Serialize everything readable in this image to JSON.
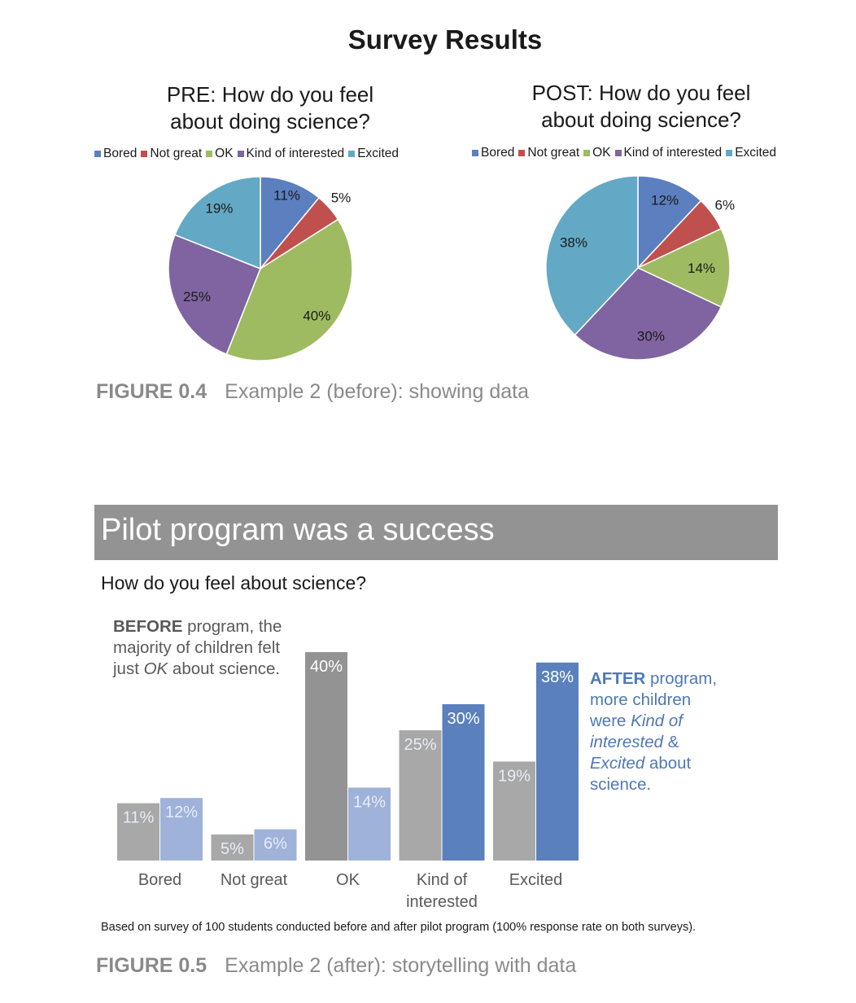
{
  "survey_title": "Survey Results",
  "figure_04": {
    "number": "FIGURE 0.4",
    "caption": "Example 2 (before): showing data"
  },
  "figure_05": {
    "number": "FIGURE 0.5",
    "caption": "Example 2 (after): storytelling with data"
  },
  "colors": {
    "bored": "#5b7fbf",
    "not_great": "#c0504d",
    "ok": "#9fbb62",
    "kind_of_interested": "#7f64a1",
    "excited": "#63a9c5",
    "before_bar": "#939393",
    "before_bar_light": "#a8a8a8",
    "after_bar": "#5a80bd",
    "after_bar_light": "#9fb2d9",
    "banner": "#939393",
    "accent_blue": "#4f78b5"
  },
  "banner": {
    "title": "Pilot program was a success"
  },
  "question": "How do you feel about science?",
  "before_note": {
    "bold": "BEFORE",
    "text1": " program, the majority of children felt just ",
    "italic": "OK",
    "text2": " about science."
  },
  "after_note": {
    "bold": "AFTER",
    "text1": " program, more children were ",
    "italic1": "Kind of interested",
    "text2": " & ",
    "italic2": "Excited",
    "text3": " about science."
  },
  "footnote": "Based on survey of 100 students conducted before and after pilot program (100% response rate on both surveys).",
  "chart_data": [
    {
      "type": "pie",
      "title": "PRE: How do you feel about doing science?",
      "title_lines": [
        "PRE: How do you feel",
        "about doing science?"
      ],
      "legend": [
        "Bored",
        "Not great",
        "OK",
        "Kind of interested",
        "Excited"
      ],
      "categories": [
        "Bored",
        "Not great",
        "OK",
        "Kind of interested",
        "Excited"
      ],
      "values": [
        11,
        5,
        40,
        25,
        19
      ],
      "labels": [
        "11%",
        "5%",
        "40%",
        "25%",
        "19%"
      ],
      "legend_position": "top"
    },
    {
      "type": "pie",
      "title": "POST: How do you feel about doing science?",
      "title_lines": [
        "POST: How do you feel",
        "about doing science?"
      ],
      "legend": [
        "Bored",
        "Not great",
        "OK",
        "Kind of interested",
        "Excited"
      ],
      "categories": [
        "Bored",
        "Not great",
        "OK",
        "Kind of interested",
        "Excited"
      ],
      "values": [
        12,
        6,
        14,
        30,
        38
      ],
      "labels": [
        "12%",
        "6%",
        "14%",
        "30%",
        "38%"
      ],
      "legend_position": "top"
    },
    {
      "type": "bar",
      "title": "How do you feel about science?",
      "categories": [
        "Bored",
        "Not great",
        "OK",
        "Kind of interested",
        "Excited"
      ],
      "category_lines": [
        [
          "Bored"
        ],
        [
          "Not great"
        ],
        [
          "OK"
        ],
        [
          "Kind of",
          "interested"
        ],
        [
          "Excited"
        ]
      ],
      "series": [
        {
          "values": [
            11,
            5,
            40,
            25,
            19
          ],
          "labels": [
            "11%",
            "5%",
            "40%",
            "25%",
            "19%"
          ]
        },
        {
          "values": [
            12,
            6,
            14,
            30,
            38
          ],
          "labels": [
            "12%",
            "6%",
            "14%",
            "30%",
            "38%"
          ]
        }
      ],
      "ylim": [
        0,
        40
      ],
      "grid": false
    }
  ]
}
